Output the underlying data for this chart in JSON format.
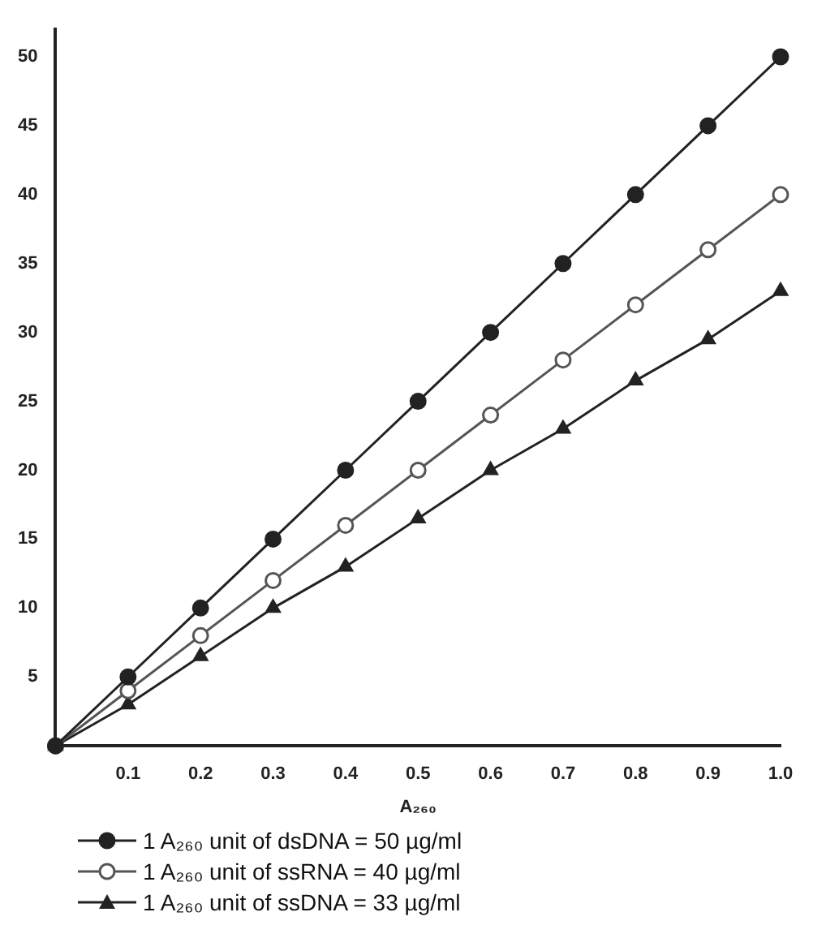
{
  "chart_data": {
    "type": "line",
    "xlabel": "A₂₆₀",
    "x": [
      0,
      0.1,
      0.2,
      0.3,
      0.4,
      0.5,
      0.6,
      0.7,
      0.8,
      0.9,
      1.0
    ],
    "series": [
      {
        "name": "1 A₂₆₀ unit of dsDNA = 50 µg/ml",
        "color": "#222222",
        "marker": "circle",
        "values": [
          0,
          5,
          10,
          15,
          20,
          25,
          30,
          35,
          40,
          45,
          50
        ]
      },
      {
        "name": "1 A₂₆₀ unit of ssRNA = 40 µg/ml",
        "color": "#555555",
        "marker": "circle-open",
        "values": [
          0,
          4,
          8,
          12,
          16,
          20,
          24,
          28,
          32,
          36,
          40
        ]
      },
      {
        "name": "1 A₂₆₀ unit of ssDNA = 33 µg/ml",
        "color": "#222222",
        "marker": "triangle",
        "values": [
          0,
          3,
          6.5,
          10,
          13,
          16.5,
          20,
          23,
          26.5,
          29.5,
          33
        ]
      }
    ],
    "xlim": [
      0,
      1.0
    ],
    "xticks": [
      0.1,
      0.2,
      0.3,
      0.4,
      0.5,
      0.6,
      0.7,
      0.8,
      0.9,
      {
        "value": 1.0,
        "label": "1.0"
      }
    ],
    "ylim": [
      0,
      52
    ],
    "yticks": [
      5,
      10,
      15,
      20,
      25,
      30,
      35,
      40,
      45,
      50
    ],
    "grid": false,
    "legend": "bottom",
    "line_style": "solid"
  }
}
